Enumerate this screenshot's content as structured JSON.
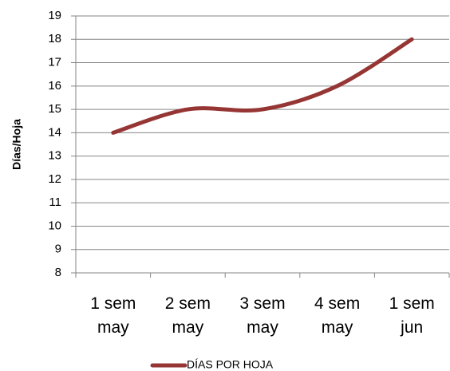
{
  "chart_data": {
    "type": "line",
    "y_label": "Días/Hoja",
    "categories": [
      "1 sem may",
      "2 sem may",
      "3 sem may",
      "4 sem may",
      "1 sem jun"
    ],
    "series": [
      {
        "name": "DÍAS POR HOJA",
        "color": "#963634",
        "values": [
          14,
          15,
          15,
          16,
          18
        ]
      }
    ],
    "ylim": [
      8,
      19
    ],
    "yticks": [
      8,
      9,
      10,
      11,
      12,
      13,
      14,
      15,
      16,
      17,
      18,
      19
    ],
    "grid": true,
    "smooth": true,
    "legend": "bottom"
  }
}
